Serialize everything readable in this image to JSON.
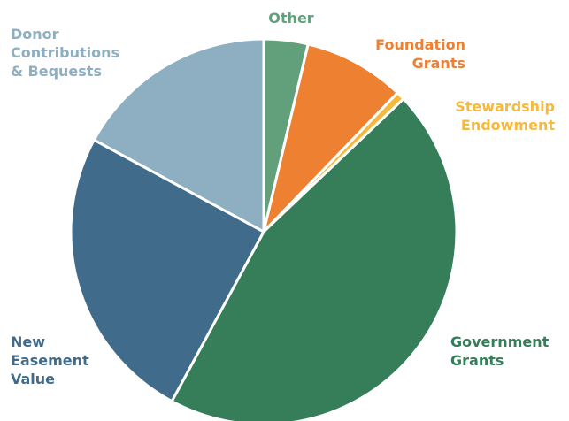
{
  "chart_data": {
    "type": "pie",
    "title": "",
    "slices": [
      {
        "label": "Other",
        "value": 3.7,
        "color": "#62a07b"
      },
      {
        "label": "Foundation\nGrants",
        "value": 8.5,
        "color": "#ee8031"
      },
      {
        "label": "Stewardship\nEndowment",
        "value": 0.7,
        "color": "#f6b93b"
      },
      {
        "label": "Government\nGrants",
        "value": 45.0,
        "color": "#367e59"
      },
      {
        "label": "New\nEasement\nValue",
        "value": 25.0,
        "color": "#406b8b"
      },
      {
        "label": "Donor\nContributions\n& Bequests",
        "value": 17.1,
        "color": "#8eaec1"
      }
    ],
    "start_angle": "12 o'clock",
    "direction": "clockwise",
    "legend": "none (labels placed around the pie)"
  }
}
